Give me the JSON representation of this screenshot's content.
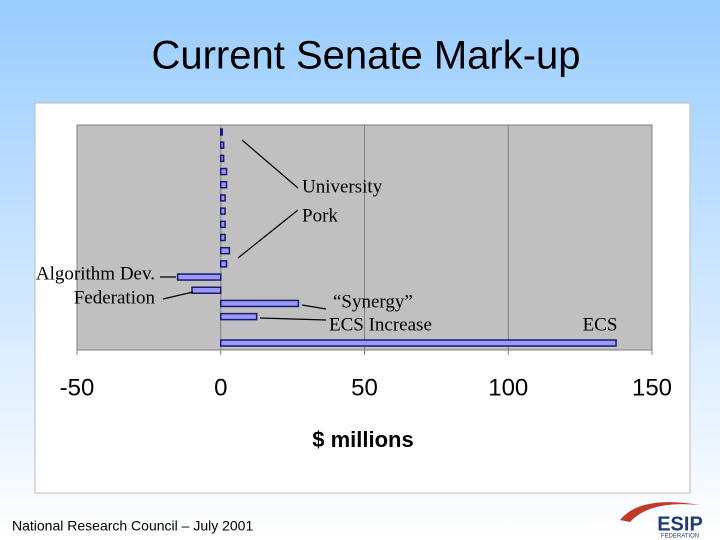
{
  "title": "Current Senate Mark-up",
  "footer": "National Research Council – July 2001",
  "logo": {
    "name": "ESIP",
    "subtitle": "FEDERATION"
  },
  "chart_data": {
    "type": "bar",
    "orientation": "horizontal",
    "categories": [
      null,
      null,
      null,
      null,
      null,
      null,
      null,
      null,
      null,
      null,
      null,
      null,
      null,
      null,
      null,
      null,
      null
    ],
    "values": [
      0.5,
      1,
      1,
      2,
      2,
      1.5,
      1.5,
      1.5,
      1.5,
      3,
      2,
      -15,
      -10,
      27,
      12.5,
      0,
      137.5
    ],
    "color": "#9999ff",
    "edge_color": "#1a1a66",
    "background": "#c0c0c0",
    "grid": true,
    "xlim": [
      -50,
      150
    ],
    "xticks": [
      -50,
      0,
      50,
      100,
      150
    ],
    "xlabel": "$ millions",
    "annotations": [
      "University",
      "Pork",
      "Algorithm Dev.",
      "Federation",
      "“Synergy”",
      "ECS Increase",
      "ECS"
    ]
  }
}
